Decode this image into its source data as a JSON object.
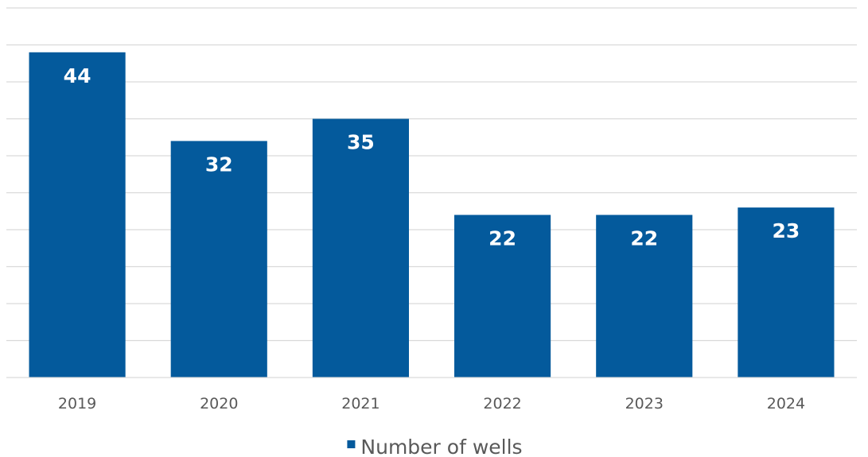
{
  "chart_data": {
    "type": "bar",
    "categories": [
      "2019",
      "2020",
      "2021",
      "2022",
      "2023",
      "2024"
    ],
    "series": [
      {
        "name": "Number of wells",
        "values": [
          44,
          32,
          35,
          22,
          22,
          23
        ],
        "color": "#045a9c"
      }
    ],
    "data_labels": [
      "44",
      "32",
      "35",
      "22",
      "22",
      "23"
    ],
    "ylim": [
      0,
      50
    ],
    "gridlines": true,
    "legend_position": "bottom",
    "label_color": "#ffffff",
    "grid_color": "#d9d9d9"
  }
}
